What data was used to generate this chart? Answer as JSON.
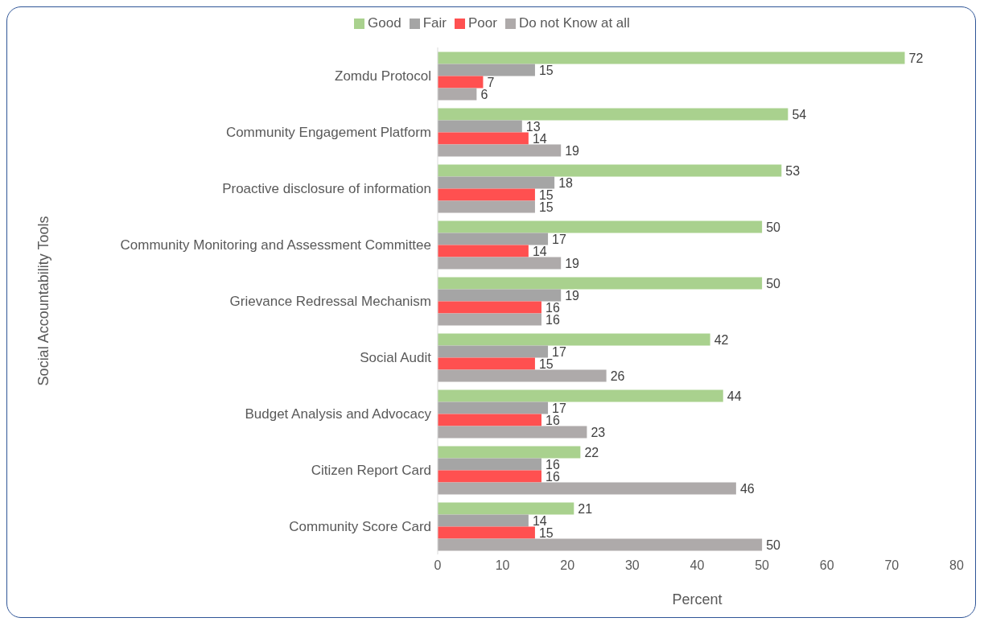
{
  "chart_data": {
    "type": "bar",
    "orientation": "horizontal",
    "ylabel": "Social Accountability Tools",
    "xlabel": "Percent",
    "categories": [
      "Zomdu Protocol",
      "Community Engagement Platform",
      "Proactive disclosure of information",
      "Community Monitoring and Assessment Committee",
      "Grievance Redressal Mechanism",
      "Social Audit",
      "Budget Analysis and Advocacy",
      "Citizen Report Card",
      "Community Score Card"
    ],
    "series": [
      {
        "name": "Good",
        "color": "#a9d18e",
        "values": [
          72,
          54,
          53,
          50,
          50,
          42,
          44,
          22,
          21
        ]
      },
      {
        "name": "Fair",
        "color": "#a5a5a5",
        "values": [
          15,
          13,
          18,
          17,
          19,
          17,
          17,
          16,
          14
        ]
      },
      {
        "name": "Poor",
        "color": "#ff5050",
        "values": [
          7,
          14,
          15,
          14,
          16,
          15,
          16,
          16,
          15
        ]
      },
      {
        "name": "Do not Know at all",
        "color": "#aeaaaa",
        "values": [
          6,
          19,
          15,
          19,
          16,
          26,
          23,
          46,
          50
        ]
      }
    ],
    "xlim": [
      0,
      80
    ],
    "xticks": [
      0,
      10,
      20,
      30,
      40,
      50,
      60,
      70,
      80
    ],
    "data_labels": true,
    "grid": false,
    "legend": "top"
  }
}
